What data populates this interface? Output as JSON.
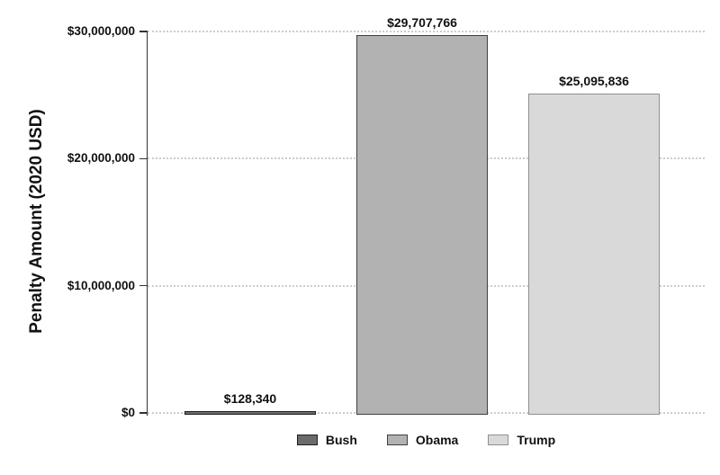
{
  "chart_data": {
    "type": "bar",
    "title": "",
    "xlabel": "",
    "ylabel": "Penalty Amount (2020 USD)",
    "categories": [
      "Bush",
      "Obama",
      "Trump"
    ],
    "values": [
      128340,
      29707766,
      25095836
    ],
    "value_labels": [
      "$128,340",
      "$29,707,766",
      "$25,095,836"
    ],
    "ylim": [
      0,
      30000000
    ],
    "yticks": [
      {
        "value": 0,
        "label": "$0"
      },
      {
        "value": 10000000,
        "label": "$10,000,000"
      },
      {
        "value": 20000000,
        "label": "$20,000,000"
      },
      {
        "value": 30000000,
        "label": "$30,000,000"
      }
    ],
    "grid": "horizontal-dotted",
    "legend_position": "bottom",
    "bar_styles": [
      {
        "fill": "#6b6b6b",
        "border": "#1f1f1f"
      },
      {
        "fill": "#b2b2b2",
        "border": "#404040"
      },
      {
        "fill": "#d9d9d9",
        "border": "#909090"
      }
    ],
    "legend": [
      {
        "label": "Bush",
        "fill": "#6b6b6b",
        "border": "#1f1f1f"
      },
      {
        "label": "Obama",
        "fill": "#b2b2b2",
        "border": "#404040"
      },
      {
        "label": "Trump",
        "fill": "#d9d9d9",
        "border": "#909090"
      }
    ]
  }
}
